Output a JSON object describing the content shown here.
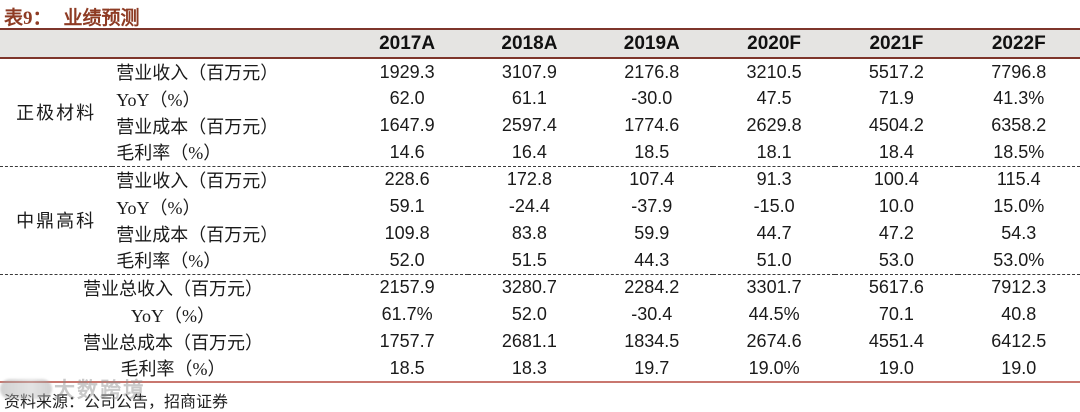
{
  "title": {
    "prefix": "表9：",
    "text": "业绩预测"
  },
  "table": {
    "year_columns": [
      "2017A",
      "2018A",
      "2019A",
      "2020F",
      "2021F",
      "2022F"
    ],
    "groups": [
      {
        "name": "正极材料",
        "rows": [
          {
            "label": "营业收入（百万元）",
            "values": [
              "1929.3",
              "3107.9",
              "2176.8",
              "3210.5",
              "5517.2",
              "7796.8"
            ]
          },
          {
            "label": "YoY（%）",
            "values": [
              "62.0",
              "61.1",
              "-30.0",
              "47.5",
              "71.9",
              "41.3%"
            ]
          },
          {
            "label": "营业成本（百万元）",
            "values": [
              "1647.9",
              "2597.4",
              "1774.6",
              "2629.8",
              "4504.2",
              "6358.2"
            ]
          },
          {
            "label": "毛利率（%）",
            "values": [
              "14.6",
              "16.4",
              "18.5",
              "18.1",
              "18.4",
              "18.5%"
            ]
          }
        ]
      },
      {
        "name": "中鼎高科",
        "rows": [
          {
            "label": "营业收入（百万元）",
            "values": [
              "228.6",
              "172.8",
              "107.4",
              "91.3",
              "100.4",
              "115.4"
            ]
          },
          {
            "label": "YoY（%）",
            "values": [
              "59.1",
              "-24.4",
              "-37.9",
              "-15.0",
              "10.0",
              "15.0%"
            ]
          },
          {
            "label": "营业成本（百万元）",
            "values": [
              "109.8",
              "83.8",
              "59.9",
              "44.7",
              "47.2",
              "54.3"
            ]
          },
          {
            "label": "毛利率（%）",
            "values": [
              "52.0",
              "51.5",
              "44.3",
              "51.0",
              "53.0",
              "53.0%"
            ]
          }
        ]
      },
      {
        "name": "",
        "rows": [
          {
            "label": "营业总收入（百万元）",
            "values": [
              "2157.9",
              "3280.7",
              "2284.2",
              "3301.7",
              "5617.6",
              "7912.3"
            ]
          },
          {
            "label": "YoY（%）",
            "values": [
              "61.7%",
              "52.0",
              "-30.4",
              "44.5%",
              "70.1",
              "40.8"
            ]
          },
          {
            "label": "营业总成本（百万元）",
            "values": [
              "1757.7",
              "2681.1",
              "1834.5",
              "2674.6",
              "4551.4",
              "6412.5"
            ]
          },
          {
            "label": "毛利率（%）",
            "values": [
              "18.5",
              "18.3",
              "19.7",
              "19.0%",
              "19.0",
              "19.0"
            ]
          }
        ]
      }
    ]
  },
  "footer": {
    "source": "资料来源：公司公告，招商证券"
  },
  "watermark": {
    "text": "大数跨境"
  },
  "colors": {
    "accent": "#8e3b24",
    "header_border": "#7e352b",
    "header_bg": "#e5e4e2",
    "bottom_line": "#c9776f"
  }
}
